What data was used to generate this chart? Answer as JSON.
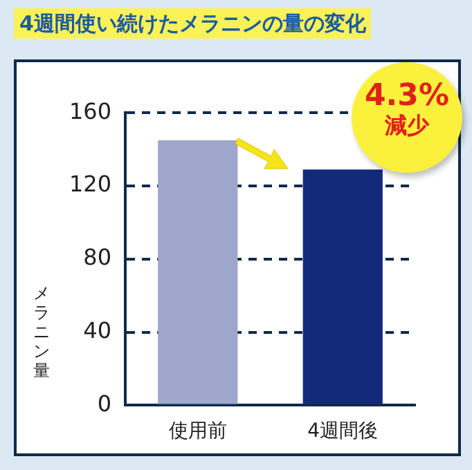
{
  "chart_data": {
    "type": "bar",
    "title": "4週間使い続けたメラニンの量の変化",
    "ylabel": "メラニン量",
    "categories": [
      "使用前",
      "4週間後"
    ],
    "values": [
      145,
      129
    ],
    "colors": [
      "#9ea6cc",
      "#13297a"
    ],
    "ylim": [
      0,
      160
    ],
    "yticks": [
      0,
      40,
      80,
      120,
      160
    ],
    "grid": "y",
    "annotations": [
      "4.3%",
      "減少"
    ]
  }
}
